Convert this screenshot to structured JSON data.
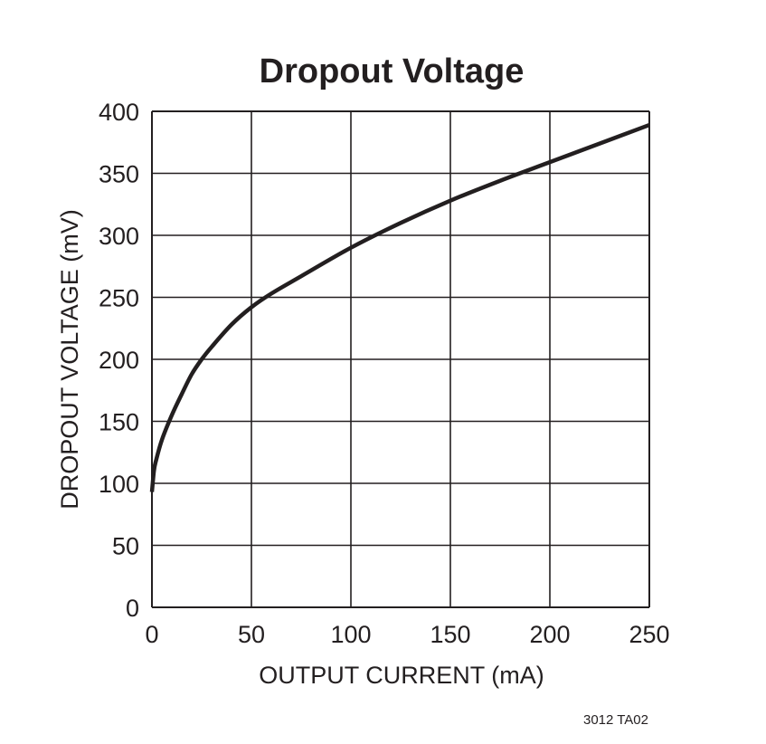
{
  "chart_data": {
    "type": "line",
    "title": "Dropout Voltage",
    "xlabel": "OUTPUT CURRENT (mA)",
    "ylabel": "DROPOUT VOLTAGE (mV)",
    "xlim": [
      0,
      250
    ],
    "ylim": [
      0,
      400
    ],
    "xticks": [
      0,
      50,
      100,
      150,
      200,
      250
    ],
    "yticks": [
      0,
      50,
      100,
      150,
      200,
      250,
      300,
      350,
      400
    ],
    "xtick_labels": [
      "0",
      "50",
      "100",
      "150",
      "200",
      "250"
    ],
    "ytick_labels": [
      "0",
      "50",
      "100",
      "150",
      "200",
      "250",
      "300",
      "350",
      "400"
    ],
    "grid": true,
    "legend": "none",
    "series": [
      {
        "x": [
          0,
          1,
          2,
          5,
          10,
          15,
          20,
          25,
          30,
          40,
          50,
          60,
          75,
          100,
          125,
          150,
          175,
          200,
          225,
          250
        ],
        "y": [
          93,
          110,
          118,
          135,
          155,
          172,
          188,
          200,
          210,
          228,
          242,
          253,
          267,
          290,
          310,
          328,
          344,
          359,
          374,
          389
        ]
      }
    ],
    "colors": {
      "line": "#231f20",
      "grid": "#231f20"
    }
  },
  "figure_ref": "3012 TA02"
}
